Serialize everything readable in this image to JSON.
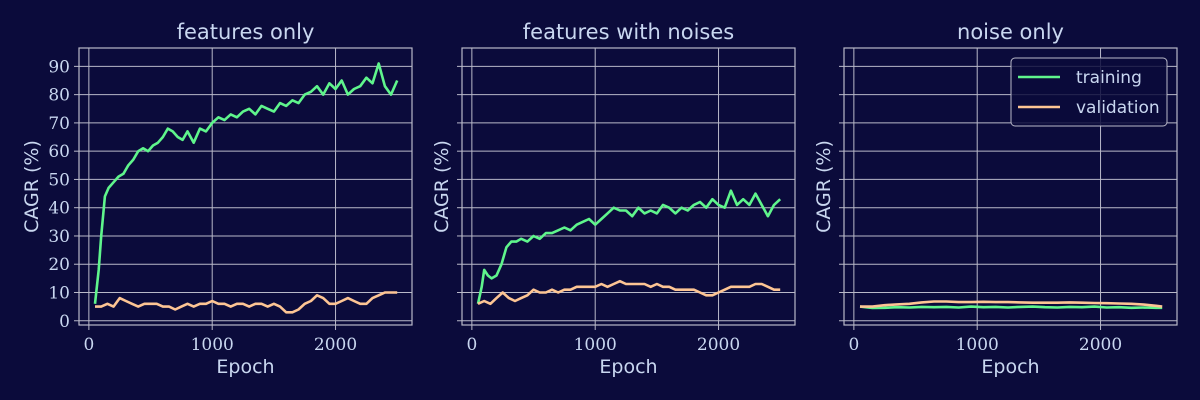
{
  "figure": {
    "background": "#0b0b3b",
    "text_color": "#c9d7f0",
    "grid_color": "#b9b9c9"
  },
  "chart_data": [
    {
      "type": "line",
      "title": "features only",
      "xlabel": "Epoch",
      "ylabel": "CAGR (%)",
      "xlim": [
        -80,
        2620
      ],
      "ylim": [
        -1.5,
        96.5
      ],
      "xticks": [
        0,
        1000,
        2000
      ],
      "yticks": [
        0,
        10,
        20,
        30,
        40,
        50,
        60,
        70,
        80,
        90
      ],
      "grid": true,
      "series": [
        {
          "name": "training",
          "color": "#5ff58c",
          "x": [
            50,
            80,
            100,
            130,
            160,
            200,
            240,
            280,
            320,
            360,
            400,
            440,
            480,
            520,
            560,
            600,
            640,
            680,
            720,
            760,
            800,
            850,
            900,
            950,
            1000,
            1050,
            1100,
            1150,
            1200,
            1250,
            1300,
            1350,
            1400,
            1450,
            1500,
            1550,
            1600,
            1650,
            1700,
            1750,
            1800,
            1850,
            1900,
            1950,
            2000,
            2050,
            2100,
            2150,
            2200,
            2250,
            2300,
            2350,
            2400,
            2450,
            2500
          ],
          "y": [
            6,
            18,
            30,
            44,
            47,
            49,
            51,
            52,
            55,
            57,
            60,
            61,
            60,
            62,
            63,
            65,
            68,
            67,
            65,
            64,
            67,
            63,
            68,
            67,
            70,
            72,
            71,
            73,
            72,
            74,
            75,
            73,
            76,
            75,
            74,
            77,
            76,
            78,
            77,
            80,
            81,
            83,
            80,
            84,
            82,
            85,
            80,
            82,
            83,
            86,
            84,
            91,
            83,
            80,
            85
          ]
        },
        {
          "name": "validation",
          "color": "#fdc594",
          "x": [
            50,
            100,
            150,
            200,
            250,
            300,
            350,
            400,
            450,
            500,
            550,
            600,
            650,
            700,
            750,
            800,
            850,
            900,
            950,
            1000,
            1050,
            1100,
            1150,
            1200,
            1250,
            1300,
            1350,
            1400,
            1450,
            1500,
            1550,
            1600,
            1650,
            1700,
            1750,
            1800,
            1850,
            1900,
            1950,
            2000,
            2050,
            2100,
            2150,
            2200,
            2250,
            2300,
            2350,
            2400,
            2450,
            2500
          ],
          "y": [
            5,
            5,
            6,
            5,
            8,
            7,
            6,
            5,
            6,
            6,
            6,
            5,
            5,
            4,
            5,
            6,
            5,
            6,
            6,
            7,
            6,
            6,
            5,
            6,
            6,
            5,
            6,
            6,
            5,
            6,
            5,
            3,
            3,
            4,
            6,
            7,
            9,
            8,
            6,
            6,
            7,
            8,
            7,
            6,
            6,
            8,
            9,
            10,
            10,
            10
          ]
        }
      ]
    },
    {
      "type": "line",
      "title": "features with noises",
      "xlabel": "Epoch",
      "ylabel": "CAGR (%)",
      "xlim": [
        -80,
        2620
      ],
      "ylim": [
        -1.5,
        96.5
      ],
      "xticks": [
        0,
        1000,
        2000
      ],
      "yticks": [
        0,
        10,
        20,
        30,
        40,
        50,
        60,
        70,
        80,
        90
      ],
      "grid": true,
      "series": [
        {
          "name": "training",
          "color": "#5ff58c",
          "x": [
            50,
            80,
            100,
            130,
            160,
            200,
            240,
            280,
            320,
            360,
            400,
            450,
            500,
            550,
            600,
            650,
            700,
            750,
            800,
            850,
            900,
            950,
            1000,
            1050,
            1100,
            1150,
            1200,
            1250,
            1300,
            1350,
            1400,
            1450,
            1500,
            1550,
            1600,
            1650,
            1700,
            1750,
            1800,
            1850,
            1900,
            1950,
            2000,
            2050,
            2100,
            2150,
            2200,
            2250,
            2300,
            2350,
            2400,
            2450,
            2500
          ],
          "y": [
            6,
            12,
            18,
            16,
            15,
            16,
            20,
            26,
            28,
            28,
            29,
            28,
            30,
            29,
            31,
            31,
            32,
            33,
            32,
            34,
            35,
            36,
            34,
            36,
            38,
            40,
            39,
            39,
            37,
            40,
            38,
            39,
            38,
            41,
            40,
            38,
            40,
            39,
            41,
            42,
            40,
            43,
            41,
            40,
            46,
            41,
            43,
            41,
            45,
            41,
            37,
            41,
            43
          ]
        },
        {
          "name": "validation",
          "color": "#fdc594",
          "x": [
            50,
            100,
            150,
            200,
            250,
            300,
            350,
            400,
            450,
            500,
            550,
            600,
            650,
            700,
            750,
            800,
            850,
            900,
            950,
            1000,
            1050,
            1100,
            1150,
            1200,
            1250,
            1300,
            1350,
            1400,
            1450,
            1500,
            1550,
            1600,
            1650,
            1700,
            1750,
            1800,
            1850,
            1900,
            1950,
            2000,
            2050,
            2100,
            2150,
            2200,
            2250,
            2300,
            2350,
            2400,
            2450,
            2500
          ],
          "y": [
            6,
            7,
            6,
            8,
            10,
            8,
            7,
            8,
            9,
            11,
            10,
            10,
            11,
            10,
            11,
            11,
            12,
            12,
            12,
            12,
            13,
            12,
            13,
            14,
            13,
            13,
            13,
            13,
            12,
            13,
            12,
            12,
            11,
            11,
            11,
            11,
            10,
            9,
            9,
            10,
            11,
            12,
            12,
            12,
            12,
            13,
            13,
            12,
            11,
            11
          ]
        }
      ]
    },
    {
      "type": "line",
      "title": "noise only",
      "xlabel": "Epoch",
      "ylabel": "CAGR (%)",
      "xlim": [
        -80,
        2620
      ],
      "ylim": [
        -1.5,
        96.5
      ],
      "xticks": [
        0,
        1000,
        2000
      ],
      "yticks": [
        0,
        10,
        20,
        30,
        40,
        50,
        60,
        70,
        80,
        90
      ],
      "grid": true,
      "legend": "top-right",
      "series": [
        {
          "name": "training",
          "color": "#5ff58c",
          "x": [
            50,
            150,
            250,
            350,
            450,
            550,
            650,
            750,
            850,
            950,
            1050,
            1150,
            1250,
            1350,
            1450,
            1550,
            1650,
            1750,
            1850,
            1950,
            2050,
            2150,
            2250,
            2350,
            2450,
            2500
          ],
          "y": [
            5,
            4.5,
            4.6,
            4.8,
            4.7,
            4.9,
            4.8,
            4.9,
            4.7,
            5,
            4.8,
            4.9,
            4.7,
            4.9,
            5,
            4.8,
            4.7,
            4.9,
            4.8,
            5,
            4.7,
            4.8,
            4.6,
            4.7,
            4.6,
            4.6
          ]
        },
        {
          "name": "validation",
          "color": "#fdc594",
          "x": [
            50,
            150,
            250,
            350,
            450,
            550,
            650,
            750,
            850,
            950,
            1050,
            1150,
            1250,
            1350,
            1450,
            1550,
            1650,
            1750,
            1850,
            1950,
            2050,
            2150,
            2250,
            2350,
            2450,
            2500
          ],
          "y": [
            5,
            5,
            5.5,
            5.8,
            6,
            6.5,
            6.8,
            6.8,
            6.6,
            6.6,
            6.7,
            6.6,
            6.6,
            6.5,
            6.4,
            6.4,
            6.4,
            6.5,
            6.4,
            6.3,
            6.2,
            6.1,
            6,
            5.7,
            5.3,
            5
          ]
        }
      ]
    }
  ]
}
